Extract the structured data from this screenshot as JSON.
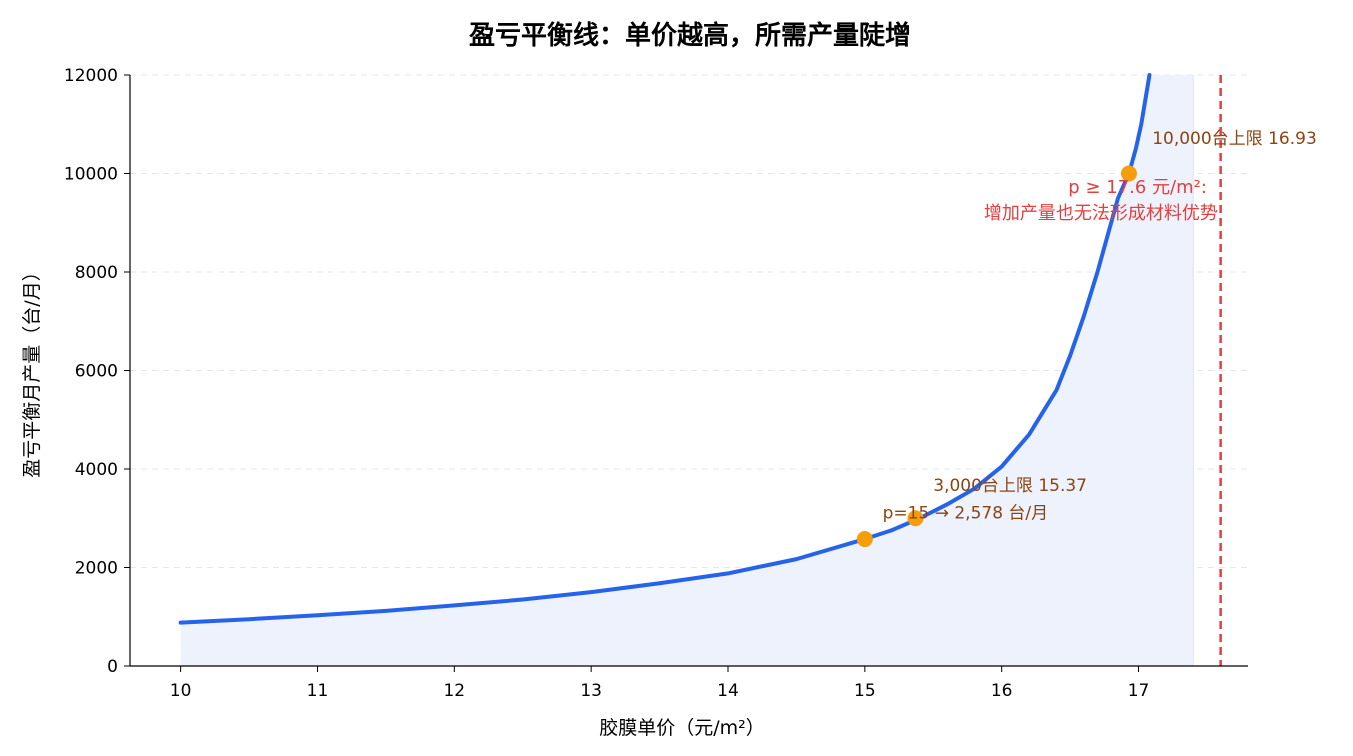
{
  "chart_data": {
    "type": "line",
    "title": "盈亏平衡线：单价越高，所需产量陡增",
    "xlabel": "胶膜单价（元/m²）",
    "ylabel": "盈亏平衡月产量（台/月）",
    "xlim": [
      9.63,
      17.8
    ],
    "ylim": [
      0,
      12000
    ],
    "x_ticks": [
      "10",
      "11",
      "12",
      "13",
      "14",
      "15",
      "16",
      "17"
    ],
    "y_ticks": [
      "0",
      "2000",
      "4000",
      "6000",
      "8000",
      "10000",
      "12000"
    ],
    "grid": "y-dashed",
    "series": [
      {
        "x": [
          10.0,
          10.5,
          11.0,
          11.5,
          12.0,
          12.5,
          13.0,
          13.5,
          14.0,
          14.5,
          15.0,
          15.2,
          15.4,
          15.6,
          15.8,
          16.0,
          16.2,
          16.4,
          16.5,
          16.6,
          16.7,
          16.8,
          16.85,
          16.93,
          16.98,
          17.02,
          17.05,
          17.08
        ],
        "y": [
          880,
          950,
          1030,
          1120,
          1230,
          1350,
          1500,
          1680,
          1880,
          2170,
          2578,
          2760,
          3000,
          3280,
          3600,
          4050,
          4700,
          5600,
          6300,
          7100,
          8000,
          9000,
          9500,
          10000,
          10500,
          11000,
          11500,
          12000
        ],
        "color": "#2563EB",
        "fill": "#EEF2FC"
      }
    ],
    "fill_x_end": 17.4,
    "vline": {
      "x": 17.6,
      "color": "#E53E3E"
    },
    "points": [
      {
        "x": 15.0,
        "y": 2578,
        "color": "#F59E0B"
      },
      {
        "x": 15.37,
        "y": 3000,
        "color": "#F59E0B"
      },
      {
        "x": 16.93,
        "y": 10000,
        "color": "#F59E0B"
      }
    ],
    "annotations": [
      {
        "text": "p=15 → 2,578 台/月",
        "x": 15.13,
        "y": 3000,
        "color": "#8B4513"
      },
      {
        "text": "3,000台上限 15.37",
        "x": 15.5,
        "y": 3550,
        "color": "#8B4513"
      },
      {
        "text": "10,000台上限 16.93",
        "x": 17.1,
        "y": 10600,
        "color": "#8B4513"
      },
      {
        "text": "p ≥ 17.6 元/m²:",
        "x": 17.5,
        "y": 9600,
        "color": "#E53E3E",
        "anchor": "end"
      },
      {
        "text": "增加产量也无法形成材料优势",
        "x": 17.58,
        "y": 9080,
        "color": "#E53E3E",
        "anchor": "end"
      }
    ]
  }
}
